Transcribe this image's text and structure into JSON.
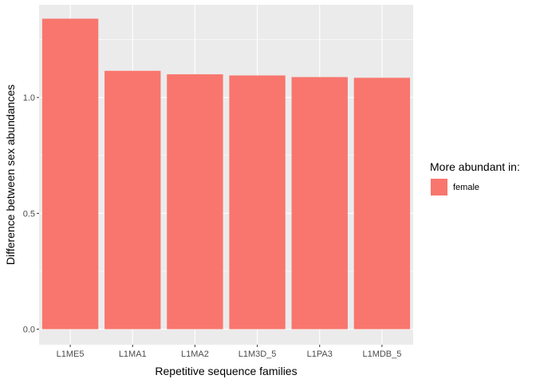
{
  "chart_data": {
    "type": "bar",
    "categories": [
      "L1ME5",
      "L1MA1",
      "L1MA2",
      "L1M3D_5",
      "L1PA3",
      "L1MDB_5"
    ],
    "series": [
      {
        "name": "female",
        "values": [
          1.34,
          1.115,
          1.1,
          1.095,
          1.088,
          1.085
        ]
      }
    ],
    "xlabel": "Repetitive sequence families",
    "ylabel": "Difference between sex abundances",
    "ylim": [
      -0.067,
      1.4
    ],
    "yticks": [
      0.0,
      0.5,
      1.0
    ],
    "ytick_labels": [
      "0.0",
      "0.5",
      "1.0"
    ],
    "grid": true,
    "legend": {
      "title": "More abundant in:",
      "placement": "right"
    },
    "colors": {
      "panel": "#ebebeb",
      "grid": "#ffffff",
      "bar": "#f8766d"
    }
  }
}
